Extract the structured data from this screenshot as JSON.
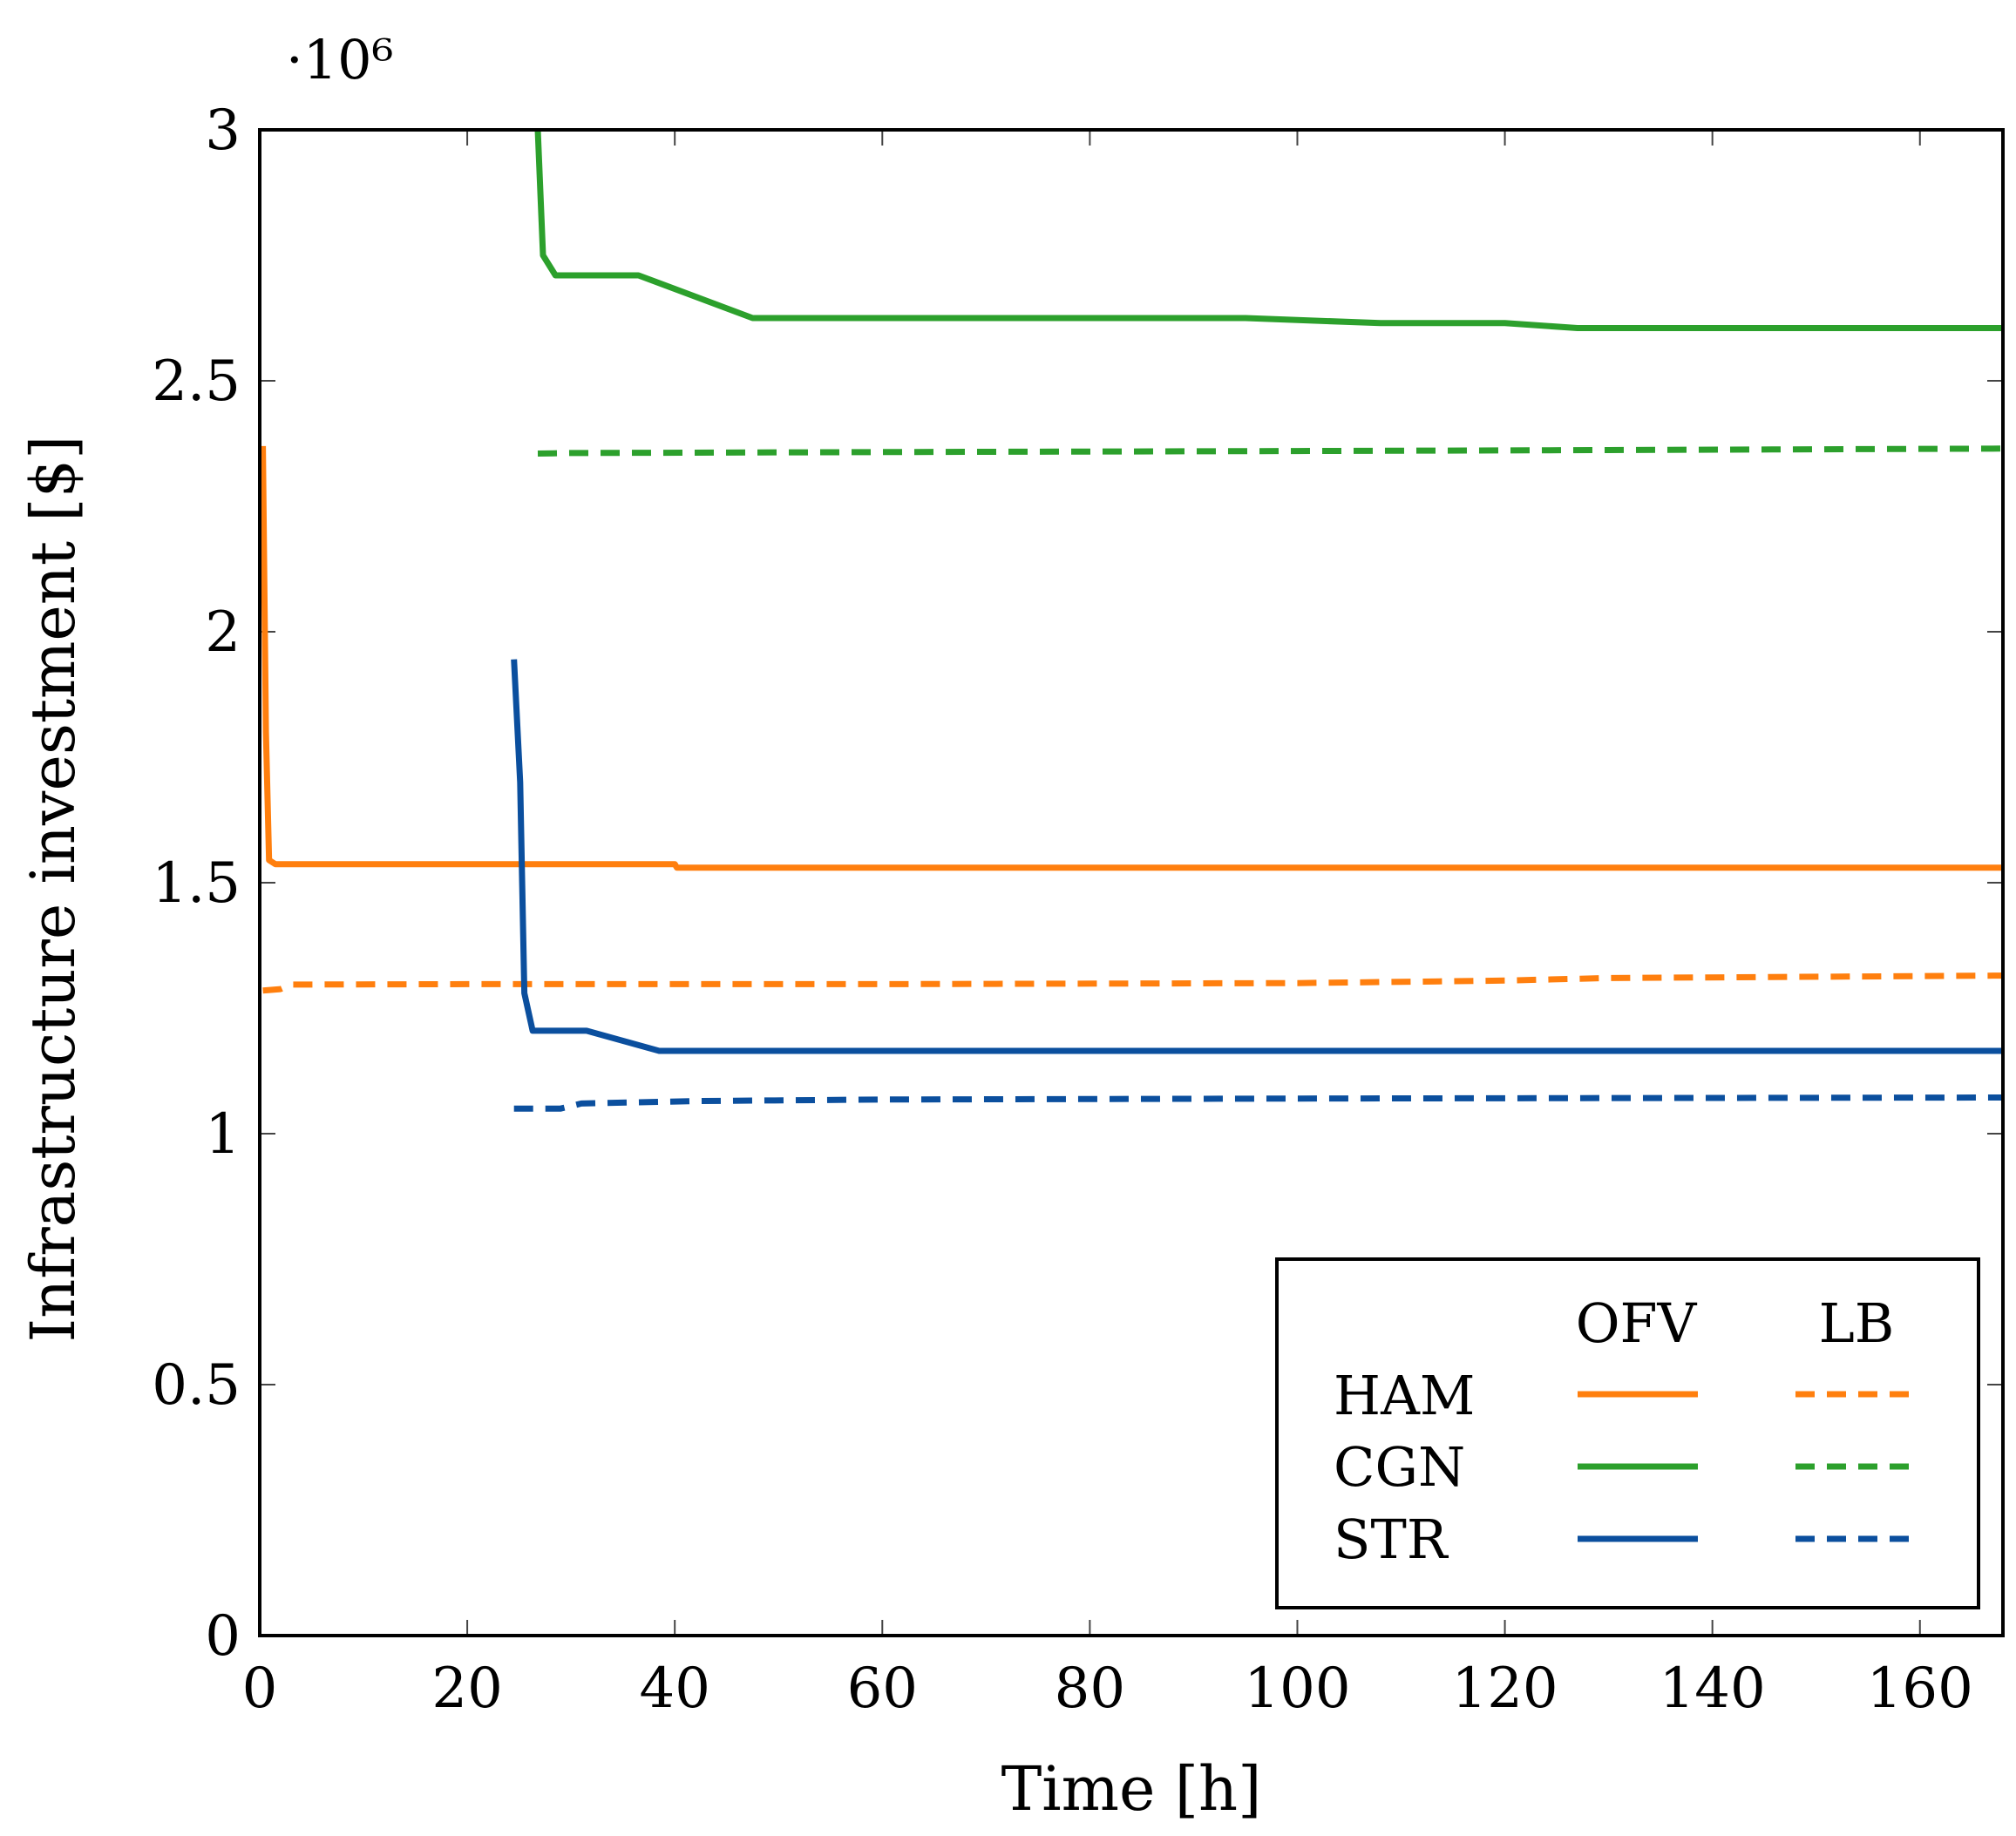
{
  "chart_data": {
    "type": "line",
    "title": "",
    "xlabel": "Time [h]",
    "ylabel": "Infrastructure investment [$]",
    "xlim": [
      0,
      168
    ],
    "ylim": [
      0,
      3000000
    ],
    "y_scale_label": "·10⁶",
    "x_ticks": [
      0,
      20,
      40,
      60,
      80,
      100,
      120,
      140,
      160
    ],
    "x_tick_labels": [
      "0",
      "20",
      "40",
      "60",
      "80",
      "100",
      "120",
      "140",
      "160"
    ],
    "y_ticks": [
      0,
      500000,
      1000000,
      1500000,
      2000000,
      2500000,
      3000000
    ],
    "y_tick_labels": [
      "0",
      "0.5",
      "1",
      "1.5",
      "2",
      "2.5",
      "3"
    ],
    "grid": false,
    "legend": {
      "placement": "bottom-right",
      "column_headers": [
        "OFV",
        "LB"
      ],
      "rows": [
        "HAM",
        "CGN",
        "STR"
      ]
    },
    "colors": {
      "HAM": "#ff7f0e",
      "CGN": "#2ca02c",
      "STR": "#0b4f9e"
    },
    "series": [
      {
        "name": "HAM OFV",
        "group": "HAM",
        "style": "solid",
        "x": [
          0.3,
          0.6,
          0.9,
          1.5,
          40,
          40.2,
          168
        ],
        "y": [
          2370000,
          1800000,
          1545000,
          1537000,
          1537000,
          1530000,
          1530000
        ]
      },
      {
        "name": "HAM LB",
        "group": "HAM",
        "style": "dashed",
        "x": [
          0.3,
          2,
          3,
          20,
          60,
          100,
          120,
          130,
          168
        ],
        "y": [
          1285000,
          1288000,
          1297000,
          1298000,
          1298000,
          1300000,
          1305000,
          1310000,
          1315000
        ]
      },
      {
        "name": "CGN OFV",
        "group": "CGN",
        "style": "solid",
        "x": [
          26.8,
          27.3,
          28.5,
          36.5,
          47.5,
          95,
          108,
          120,
          127,
          168
        ],
        "y": [
          3000000,
          2750000,
          2710000,
          2710000,
          2625000,
          2625000,
          2615000,
          2615000,
          2605000,
          2605000
        ]
      },
      {
        "name": "CGN LB",
        "group": "CGN",
        "style": "dashed",
        "x": [
          26.8,
          30,
          60,
          100,
          130,
          168
        ],
        "y": [
          2355000,
          2356000,
          2358000,
          2360000,
          2362000,
          2365000
        ]
      },
      {
        "name": "STR OFV",
        "group": "STR",
        "style": "solid",
        "x": [
          24.5,
          25.1,
          25.5,
          26.3,
          31.5,
          38.5,
          168
        ],
        "y": [
          1945000,
          1700000,
          1280000,
          1205000,
          1205000,
          1165000,
          1165000
        ]
      },
      {
        "name": "STR LB",
        "group": "STR",
        "style": "dashed",
        "x": [
          24.5,
          29,
          31,
          42,
          60,
          100,
          168
        ],
        "y": [
          1050000,
          1050000,
          1060000,
          1065000,
          1068000,
          1070000,
          1072000
        ]
      }
    ]
  }
}
